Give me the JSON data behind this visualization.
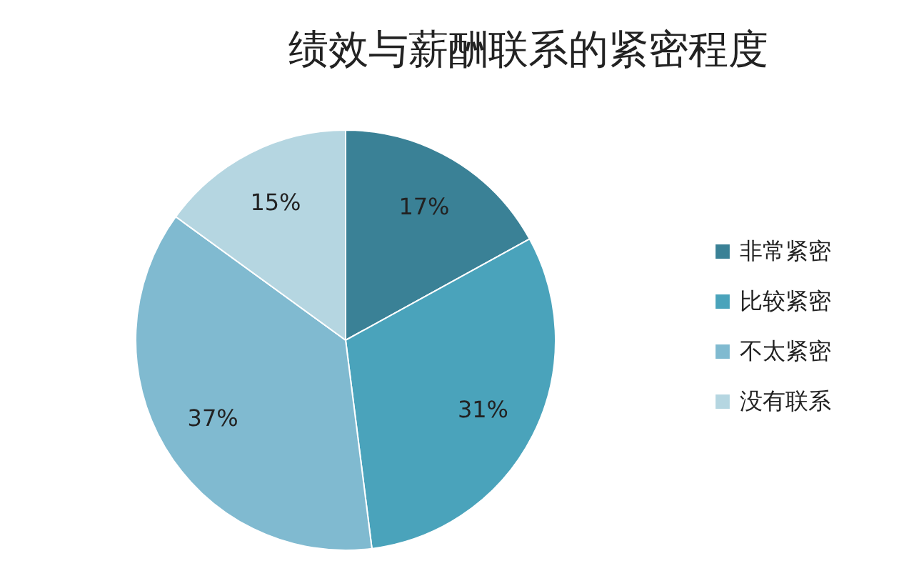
{
  "chart_data": {
    "type": "pie",
    "title": "绩效与薪酬联系的紧密程度",
    "categories": [
      "非常紧密",
      "比较紧密",
      "不太紧密",
      "没有联系"
    ],
    "values": [
      17,
      31,
      37,
      15
    ],
    "colors": [
      "#3a8196",
      "#4aa3bb",
      "#80bad0",
      "#b5d6e1"
    ],
    "value_labels": [
      "17%",
      "31%",
      "37%",
      "15%"
    ],
    "legend": "right"
  }
}
